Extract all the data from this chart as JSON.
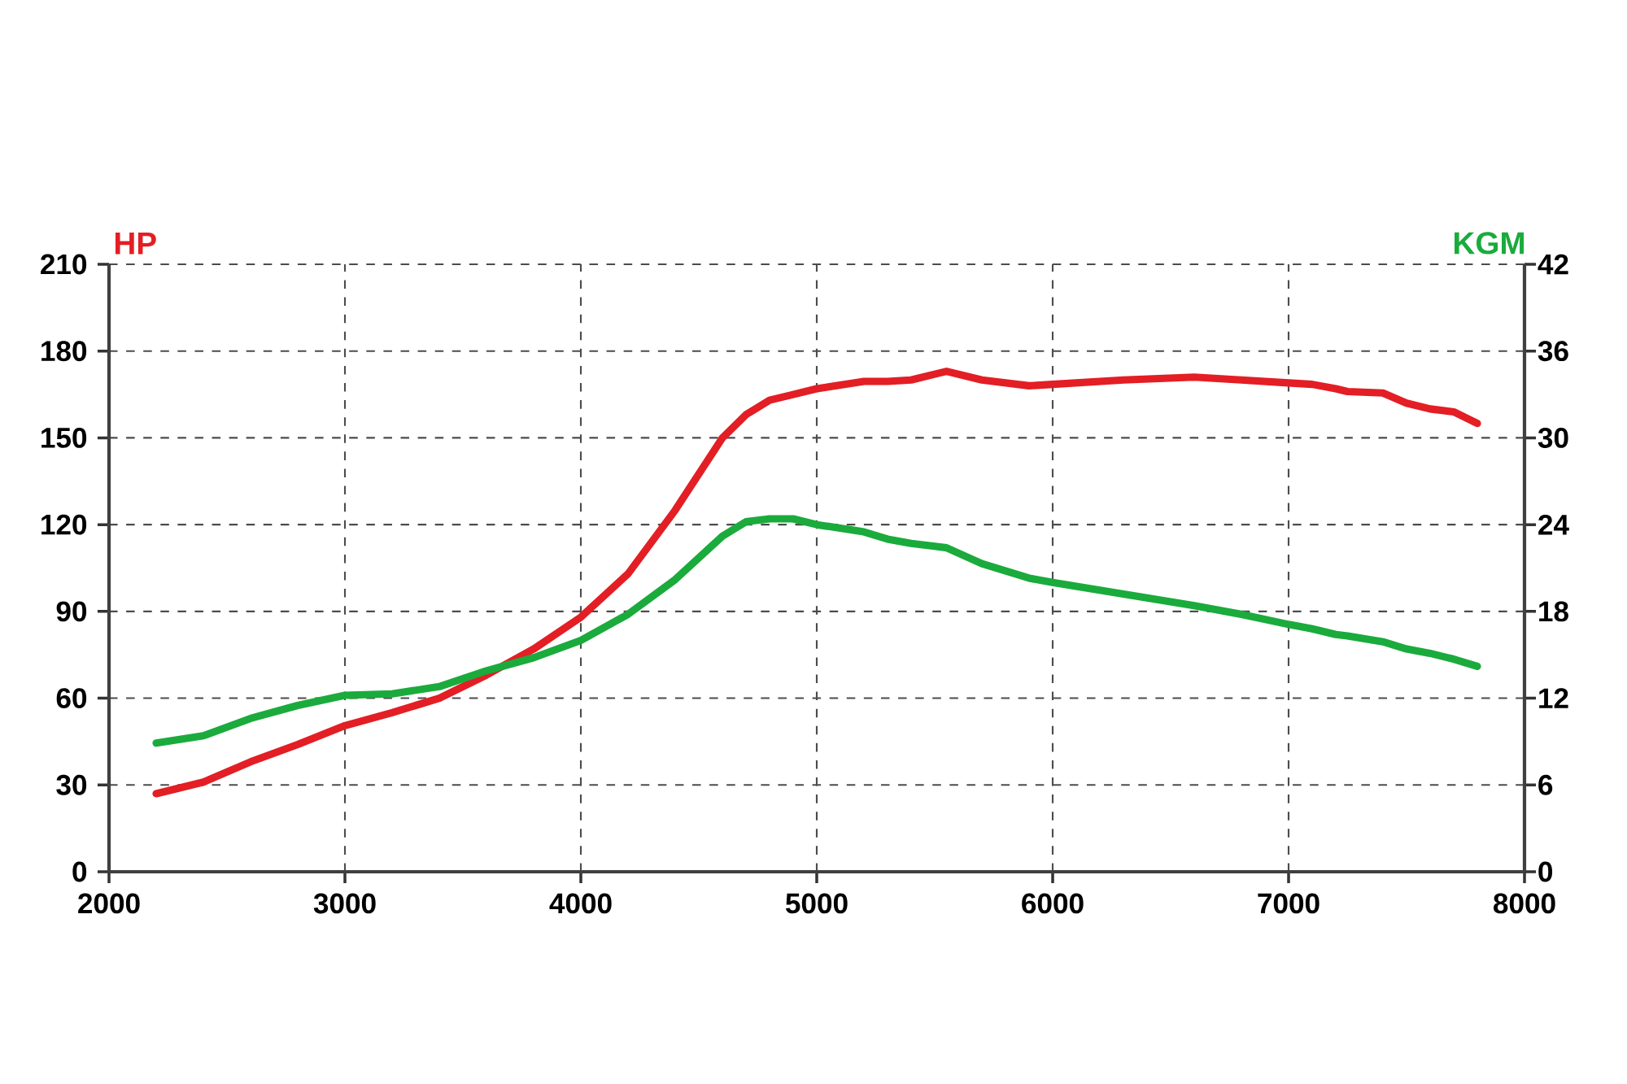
{
  "chart_data": {
    "type": "line",
    "ylabel": "HP",
    "y2label": "KGM",
    "x": [
      2200,
      2400,
      2600,
      2800,
      3000,
      3200,
      3400,
      3600,
      3800,
      4000,
      4200,
      4400,
      4600,
      4700,
      4800,
      4900,
      5000,
      5200,
      5300,
      5400,
      5500,
      5550,
      5700,
      5900,
      6000,
      6300,
      6600,
      6800,
      7000,
      7100,
      7200,
      7250,
      7400,
      7500,
      7600,
      7700,
      7800
    ],
    "series": [
      {
        "color": "#e31e24",
        "axis": "y",
        "values": [
          27,
          31,
          38,
          44,
          50.5,
          55,
          60,
          68,
          77,
          88,
          103,
          125,
          150,
          158,
          163,
          165,
          167,
          169.5,
          169.5,
          170,
          172,
          173,
          170,
          168,
          168.5,
          170,
          171,
          170,
          169,
          168.5,
          167,
          166,
          165.5,
          162,
          160,
          159,
          155
        ]
      },
      {
        "color": "#1aab3c",
        "axis": "y2",
        "values": [
          8.9,
          9.4,
          10.6,
          11.5,
          12.2,
          12.3,
          12.8,
          13.9,
          14.8,
          16,
          17.8,
          20.2,
          23.2,
          24.2,
          24.4,
          24.4,
          24,
          23.5,
          23,
          22.7,
          22.5,
          22.4,
          21.3,
          20.3,
          20,
          19.2,
          18.4,
          17.8,
          17.1,
          16.8,
          16.4,
          16.3,
          15.9,
          15.4,
          15.1,
          14.7,
          14.2
        ]
      }
    ],
    "xlim": [
      2000,
      8000
    ],
    "xticks": [
      2000,
      3000,
      4000,
      5000,
      6000,
      7000,
      8000
    ],
    "ylim": [
      0,
      210
    ],
    "yticks": [
      0,
      30,
      60,
      90,
      120,
      150,
      180,
      210
    ],
    "y2lim": [
      0,
      42
    ],
    "y2ticks": [
      0,
      6,
      12,
      18,
      24,
      30,
      36,
      42
    ],
    "grid": true
  }
}
